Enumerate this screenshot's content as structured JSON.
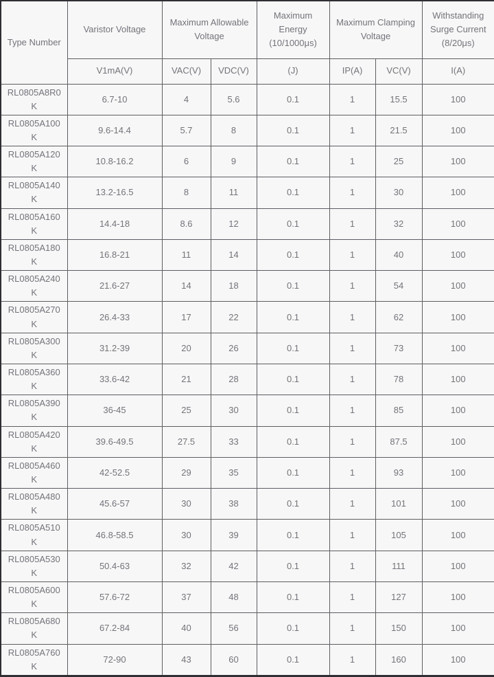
{
  "table": {
    "title": "Varistor specifications table",
    "header_groups": [
      {
        "label": "Type Number"
      },
      {
        "label": "Varistor Voltage"
      },
      {
        "label": "Maximum Allowable Voltage"
      },
      {
        "label": "Maximum Energy (10/1000μs)"
      },
      {
        "label": "Maximum Clamping Voltage"
      },
      {
        "label": "Withstanding Surge Current (8/20μs)"
      }
    ],
    "sub_headers": [
      "V1mA(V)",
      "VAC(V)",
      "VDC(V)",
      "(J)",
      "IP(A)",
      "VC(V)",
      "I(A)"
    ],
    "rows": [
      [
        "RL0805A8R0K",
        "6.7-10",
        "4",
        "5.6",
        "0.1",
        "1",
        "15.5",
        "100"
      ],
      [
        "RL0805A100K",
        "9.6-14.4",
        "5.7",
        "8",
        "0.1",
        "1",
        "21.5",
        "100"
      ],
      [
        "RL0805A120K",
        "10.8-16.2",
        "6",
        "9",
        "0.1",
        "1",
        "25",
        "100"
      ],
      [
        "RL0805A140K",
        "13.2-16.5",
        "8",
        "11",
        "0.1",
        "1",
        "30",
        "100"
      ],
      [
        "RL0805A160K",
        "14.4-18",
        "8.6",
        "12",
        "0.1",
        "1",
        "32",
        "100"
      ],
      [
        "RL0805A180K",
        "16.8-21",
        "11",
        "14",
        "0.1",
        "1",
        "40",
        "100"
      ],
      [
        "RL0805A240K",
        "21.6-27",
        "14",
        "18",
        "0.1",
        "1",
        "54",
        "100"
      ],
      [
        "RL0805A270K",
        "26.4-33",
        "17",
        "22",
        "0.1",
        "1",
        "62",
        "100"
      ],
      [
        "RL0805A300K",
        "31.2-39",
        "20",
        "26",
        "0.1",
        "1",
        "73",
        "100"
      ],
      [
        "RL0805A360K",
        "33.6-42",
        "21",
        "28",
        "0.1",
        "1",
        "78",
        "100"
      ],
      [
        "RL0805A390K",
        "36-45",
        "25",
        "30",
        "0.1",
        "1",
        "85",
        "100"
      ],
      [
        "RL0805A420K",
        "39.6-49.5",
        "27.5",
        "33",
        "0.1",
        "1",
        "87.5",
        "100"
      ],
      [
        "RL0805A460K",
        "42-52.5",
        "29",
        "35",
        "0.1",
        "1",
        "93",
        "100"
      ],
      [
        "RL0805A480K",
        "45.6-57",
        "30",
        "38",
        "0.1",
        "1",
        "101",
        "100"
      ],
      [
        "RL0805A510K",
        "46.8-58.5",
        "30",
        "39",
        "0.1",
        "1",
        "105",
        "100"
      ],
      [
        "RL0805A530K",
        "50.4-63",
        "32",
        "42",
        "0.1",
        "1",
        "111",
        "100"
      ],
      [
        "RL0805A600K",
        "57.6-72",
        "37",
        "48",
        "0.1",
        "1",
        "127",
        "100"
      ],
      [
        "RL0805A680K",
        "67.2-84",
        "40",
        "56",
        "0.1",
        "1",
        "150",
        "100"
      ],
      [
        "RL0805A760K",
        "72-90",
        "43",
        "60",
        "0.1",
        "1",
        "160",
        "100"
      ]
    ],
    "colors": {
      "cell_background": "#f7f7f7",
      "text": "#73737b",
      "inner_border": "#5d5d63",
      "outer_border": "#2e2e33"
    }
  }
}
